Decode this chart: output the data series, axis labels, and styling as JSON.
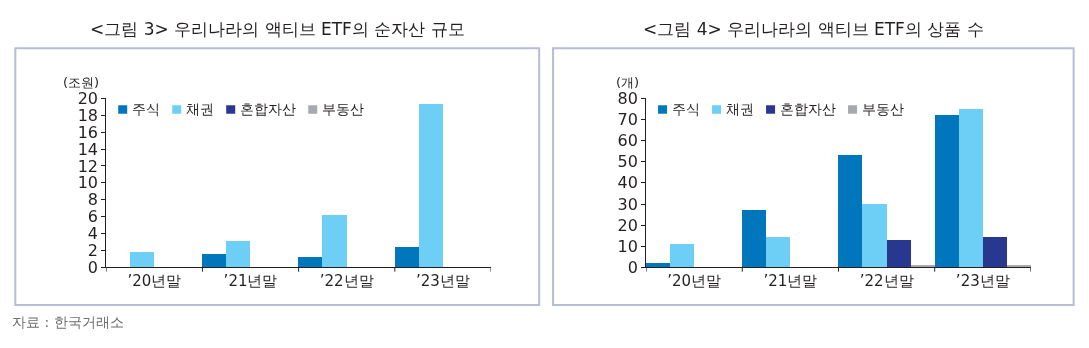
{
  "chart_data": [
    {
      "type": "bar",
      "title": "<그림 3> 우리나라의 액티브 ETF의 순자산 규모",
      "ylabel": "(조원)",
      "categories": [
        "’20년말",
        "’21년말",
        "’22년말",
        "’23년말"
      ],
      "series": [
        {
          "name": "주식",
          "color": "#0077bd",
          "values": [
            0,
            1.5,
            1.2,
            2.4
          ]
        },
        {
          "name": "채권",
          "color": "#6dcff6",
          "values": [
            1.8,
            3.1,
            6.2,
            19.3
          ]
        },
        {
          "name": "혼합자산",
          "color": "#283891",
          "values": [
            0,
            0,
            0,
            0
          ]
        },
        {
          "name": "부동산",
          "color": "#a7a9ac",
          "values": [
            0,
            0,
            0,
            0
          ]
        }
      ],
      "ylim": [
        0,
        20
      ],
      "yticks": [
        0,
        2,
        4,
        6,
        8,
        10,
        12,
        14,
        16,
        18,
        20
      ],
      "grid": false,
      "legend": "top left",
      "annotations": [
        "자료 : 한국거래소"
      ]
    },
    {
      "type": "bar",
      "title": "<그림 4> 우리나라의 액티브 ETF의 상품 수",
      "ylabel": "(개)",
      "categories": [
        "’20년말",
        "’21년말",
        "’22년말",
        "’23년말"
      ],
      "series": [
        {
          "name": "주식",
          "color": "#0077bd",
          "values": [
            2,
            27,
            53,
            72
          ]
        },
        {
          "name": "채권",
          "color": "#6dcff6",
          "values": [
            11,
            14,
            30,
            75
          ]
        },
        {
          "name": "혼합자산",
          "color": "#283891",
          "values": [
            0,
            0,
            13,
            14
          ]
        },
        {
          "name": "부동산",
          "color": "#a7a9ac",
          "values": [
            0,
            0,
            1,
            1
          ]
        }
      ],
      "ylim": [
        0,
        80
      ],
      "yticks": [
        0,
        10,
        20,
        30,
        40,
        50,
        60,
        70,
        80
      ],
      "grid": false,
      "legend": "top left"
    }
  ]
}
